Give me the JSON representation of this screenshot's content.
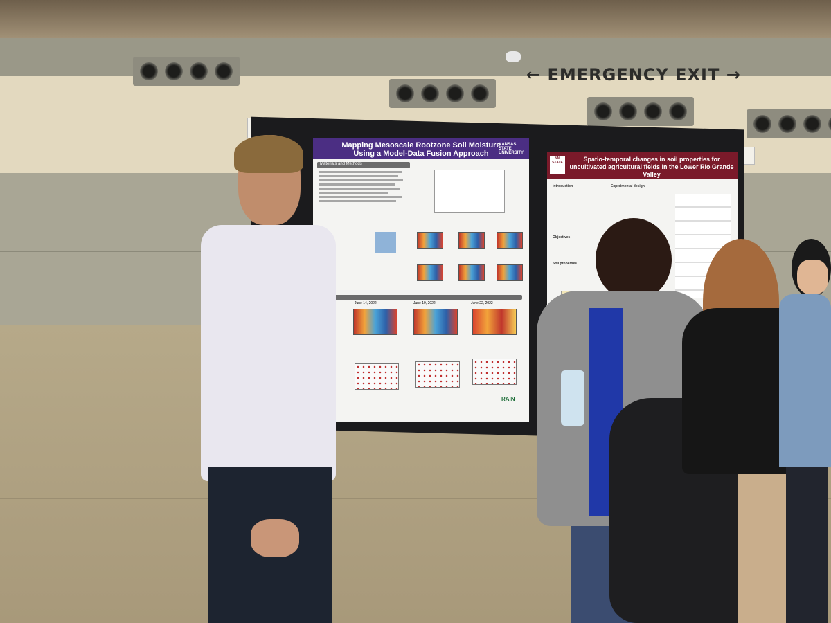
{
  "signage": {
    "exit_text": "EMERGENCY EXIT",
    "left_arrow": "←",
    "right_arrow": "→"
  },
  "poster_main": {
    "title_line1": "Mapping Mesoscale Rootzone Soil Moisture",
    "title_line2": "Using a Model-Data Fusion Approach",
    "logo": "KANSAS STATE UNIVERSITY",
    "section_methods": "Materials and Methods",
    "map_date_1": "June 14, 2022",
    "map_date_2": "June 19, 2022",
    "map_date_3": "June 22, 2022",
    "footer_logo": "RAIN"
  },
  "poster_second": {
    "title": "Spatio-temporal changes in soil properties for uncultivated agricultural fields in the Lower Rio Grande Valley",
    "logo": "NM STATE",
    "section_intro": "Introduction",
    "section_design": "Experimental design",
    "section_objectives": "Objectives",
    "section_soil": "Soil properties"
  },
  "colors": {
    "k_state_purple": "#4b2e83",
    "nmsu_crimson": "#7a1a2a",
    "wall_cream": "#e3d9bf",
    "floor": "#b6a989"
  }
}
